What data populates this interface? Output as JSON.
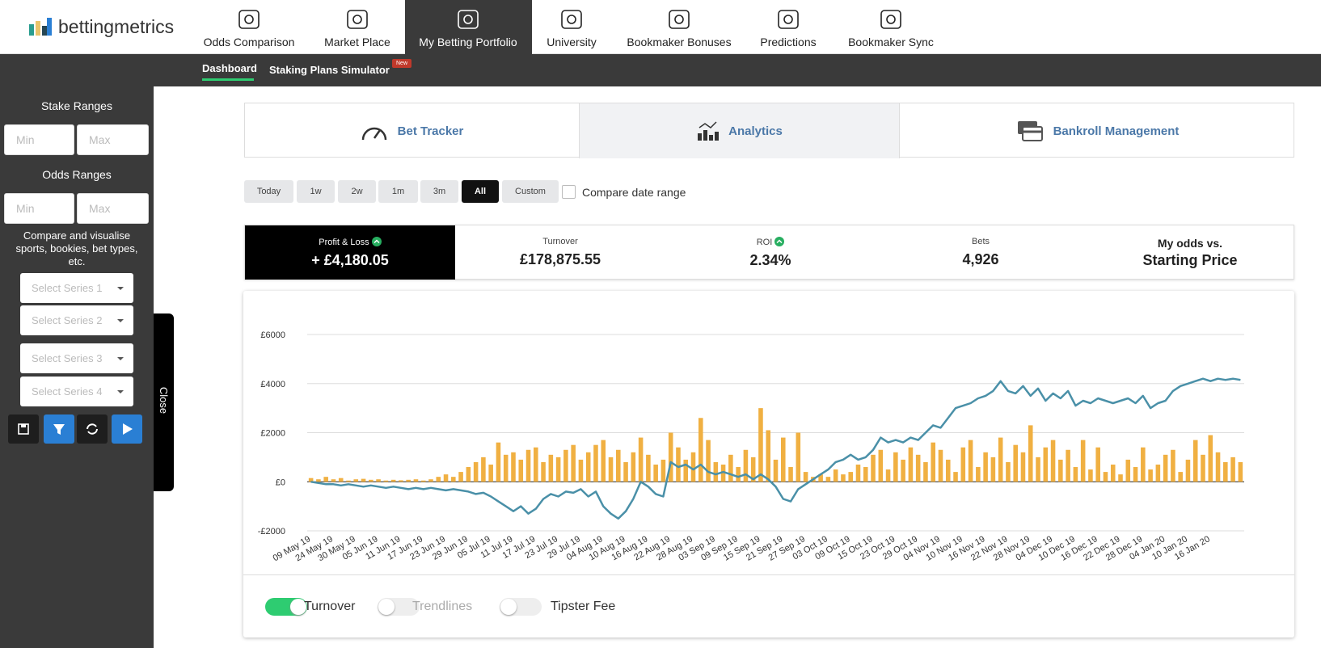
{
  "header": {
    "logo": "bettingmetrics",
    "nav": [
      "Odds Comparison",
      "Market Place",
      "My Betting Portfolio",
      "University",
      "Bookmaker Bonuses",
      "Predictions",
      "Bookmaker Sync"
    ]
  },
  "subnav": {
    "items": [
      "Dashboard",
      "Staking Plans Simulator"
    ],
    "badge": "New"
  },
  "sidebar": {
    "stake_title": "Stake Ranges",
    "stake_min": "Min",
    "stake_max": "Max",
    "odds_title": "Odds Ranges",
    "odds_min": "Min",
    "odds_max": "Max",
    "description": "Compare and visualise sports, bookies, bet types, etc.",
    "series": [
      "Select Series 1",
      "Select Series 2",
      "Select Series 3",
      "Select Series 4"
    ],
    "close": "Close"
  },
  "tabs": [
    "Bet Tracker",
    "Analytics",
    "Bankroll Management"
  ],
  "date_filters": {
    "buttons": [
      "Today",
      "1w",
      "2w",
      "1m",
      "3m",
      "All",
      "Custom"
    ],
    "compare": "Compare date range"
  },
  "stats": [
    {
      "label": "Profit & Loss",
      "value": "+ £4,180.05"
    },
    {
      "label": "Turnover",
      "value": "£178,875.55"
    },
    {
      "label": "ROI",
      "value": "2.34%"
    },
    {
      "label": "Bets",
      "value": "4,926"
    },
    {
      "label": "My odds vs.",
      "value": "Starting Price"
    }
  ],
  "toggles": [
    {
      "label": "Turnover",
      "on": true
    },
    {
      "label": "Trendlines",
      "on": false
    },
    {
      "label": "Tipster Fee",
      "on": false
    }
  ],
  "chart_data": {
    "type": "combo",
    "categories": [
      "09 May 19",
      null,
      null,
      "24 May 19",
      null,
      null,
      "30 May 19",
      null,
      null,
      "05 Jun 19",
      null,
      null,
      "11 Jun 19",
      null,
      null,
      "17 Jun 19",
      null,
      null,
      "23 Jun 19",
      null,
      null,
      "29 Jun 19",
      null,
      null,
      "05 Jul 19",
      null,
      null,
      "11 Jul 19",
      null,
      null,
      "17 Jul 19",
      null,
      null,
      "23 Jul 19",
      null,
      null,
      "29 Jul 19",
      null,
      null,
      "04 Aug 19",
      null,
      null,
      "10 Aug 19",
      null,
      null,
      "16 Aug 19",
      null,
      null,
      "22 Aug 19",
      null,
      null,
      "28 Aug 19",
      null,
      null,
      "03 Sep 19",
      null,
      null,
      "09 Sep 19",
      null,
      null,
      "15 Sep 19",
      null,
      null,
      "21 Sep 19",
      null,
      null,
      "27 Sep 19",
      null,
      null,
      "03 Oct 19",
      null,
      null,
      "09 Oct 19",
      null,
      null,
      "15 Oct 19",
      null,
      null,
      "23 Oct 19",
      null,
      null,
      "29 Oct 19",
      null,
      null,
      "04 Nov 19",
      null,
      null,
      "10 Nov 19",
      null,
      null,
      "16 Nov 19",
      null,
      null,
      "22 Nov 19",
      null,
      null,
      "28 Nov 19",
      null,
      null,
      "04 Dec 19",
      null,
      null,
      "10 Dec 19",
      null,
      null,
      "16 Dec 19",
      null,
      null,
      "22 Dec 19",
      null,
      null,
      "28 Dec 19",
      null,
      null,
      "04 Jan 20",
      null,
      null,
      "10 Jan 20",
      null,
      null,
      "16 Jan 20",
      null,
      null,
      null,
      null
    ],
    "series": [
      {
        "name": "Turnover",
        "type": "bar",
        "color": "#f0b042",
        "values": [
          150,
          100,
          200,
          100,
          150,
          50,
          100,
          120,
          80,
          100,
          50,
          80,
          60,
          80,
          100,
          50,
          100,
          200,
          300,
          200,
          400,
          600,
          800,
          1000,
          700,
          1600,
          1100,
          1200,
          900,
          1300,
          1400,
          800,
          1100,
          1000,
          1300,
          1500,
          900,
          1200,
          1500,
          1700,
          1000,
          1300,
          800,
          1200,
          1800,
          1100,
          700,
          900,
          2000,
          1400,
          900,
          1200,
          2600,
          1700,
          800,
          700,
          1100,
          600,
          1300,
          1000,
          3000,
          2100,
          900,
          1800,
          600,
          2000,
          400,
          200,
          300,
          200,
          500,
          300,
          400,
          700,
          600,
          1100,
          1300,
          500,
          1200,
          900,
          1400,
          1100,
          800,
          1600,
          1300,
          900,
          400,
          1400,
          1700,
          600,
          1200,
          1000,
          1800,
          800,
          1500,
          1200,
          2300,
          1000,
          1400,
          1700,
          900,
          1300,
          600,
          1700,
          500,
          1400,
          400,
          700,
          300,
          900,
          600,
          1400,
          500,
          700,
          1100,
          1300,
          400,
          900,
          1700,
          1100,
          1900,
          1200,
          800,
          1000,
          800
        ]
      },
      {
        "type": "line",
        "color": "#4a90a8",
        "values": [
          0,
          -50,
          -100,
          -100,
          -150,
          -100,
          -150,
          -200,
          -150,
          -200,
          -250,
          -200,
          -250,
          -300,
          -250,
          -300,
          -250,
          -300,
          -350,
          -300,
          -350,
          -400,
          -500,
          -450,
          -600,
          -800,
          -1000,
          -1200,
          -1000,
          -1300,
          -1100,
          -700,
          -500,
          -600,
          -400,
          -450,
          -300,
          -600,
          -400,
          -1000,
          -1300,
          -1500,
          -1200,
          -700,
          0,
          -200,
          -500,
          -600,
          800,
          600,
          700,
          500,
          700,
          400,
          300,
          400,
          300,
          200,
          300,
          100,
          300,
          100,
          -200,
          -700,
          -800,
          -300,
          -100,
          100,
          300,
          500,
          800,
          900,
          1100,
          900,
          1000,
          1300,
          1800,
          1600,
          1700,
          1600,
          1800,
          1700,
          2000,
          2300,
          2200,
          2600,
          3000,
          3100,
          3200,
          3400,
          3500,
          3700,
          4100,
          3700,
          3600,
          3900,
          3500,
          3800,
          3300,
          3600,
          3400,
          3700,
          3100,
          3300,
          3200,
          3400,
          3300,
          3200,
          3300,
          3400,
          3200,
          3500,
          3000,
          3200,
          3300,
          3700,
          3900,
          4000,
          4100,
          4200,
          4100,
          4200,
          4150,
          4200,
          4150
        ]
      }
    ],
    "ylim": [
      -2000,
      6000
    ],
    "yticks": [
      {
        "value": -2000,
        "label": "-£2000"
      },
      {
        "value": 0,
        "label": "£0"
      },
      {
        "value": 2000,
        "label": "£2000"
      },
      {
        "value": 4000,
        "label": "£4000"
      },
      {
        "value": 6000,
        "label": "£6000"
      }
    ],
    "grid": true
  }
}
